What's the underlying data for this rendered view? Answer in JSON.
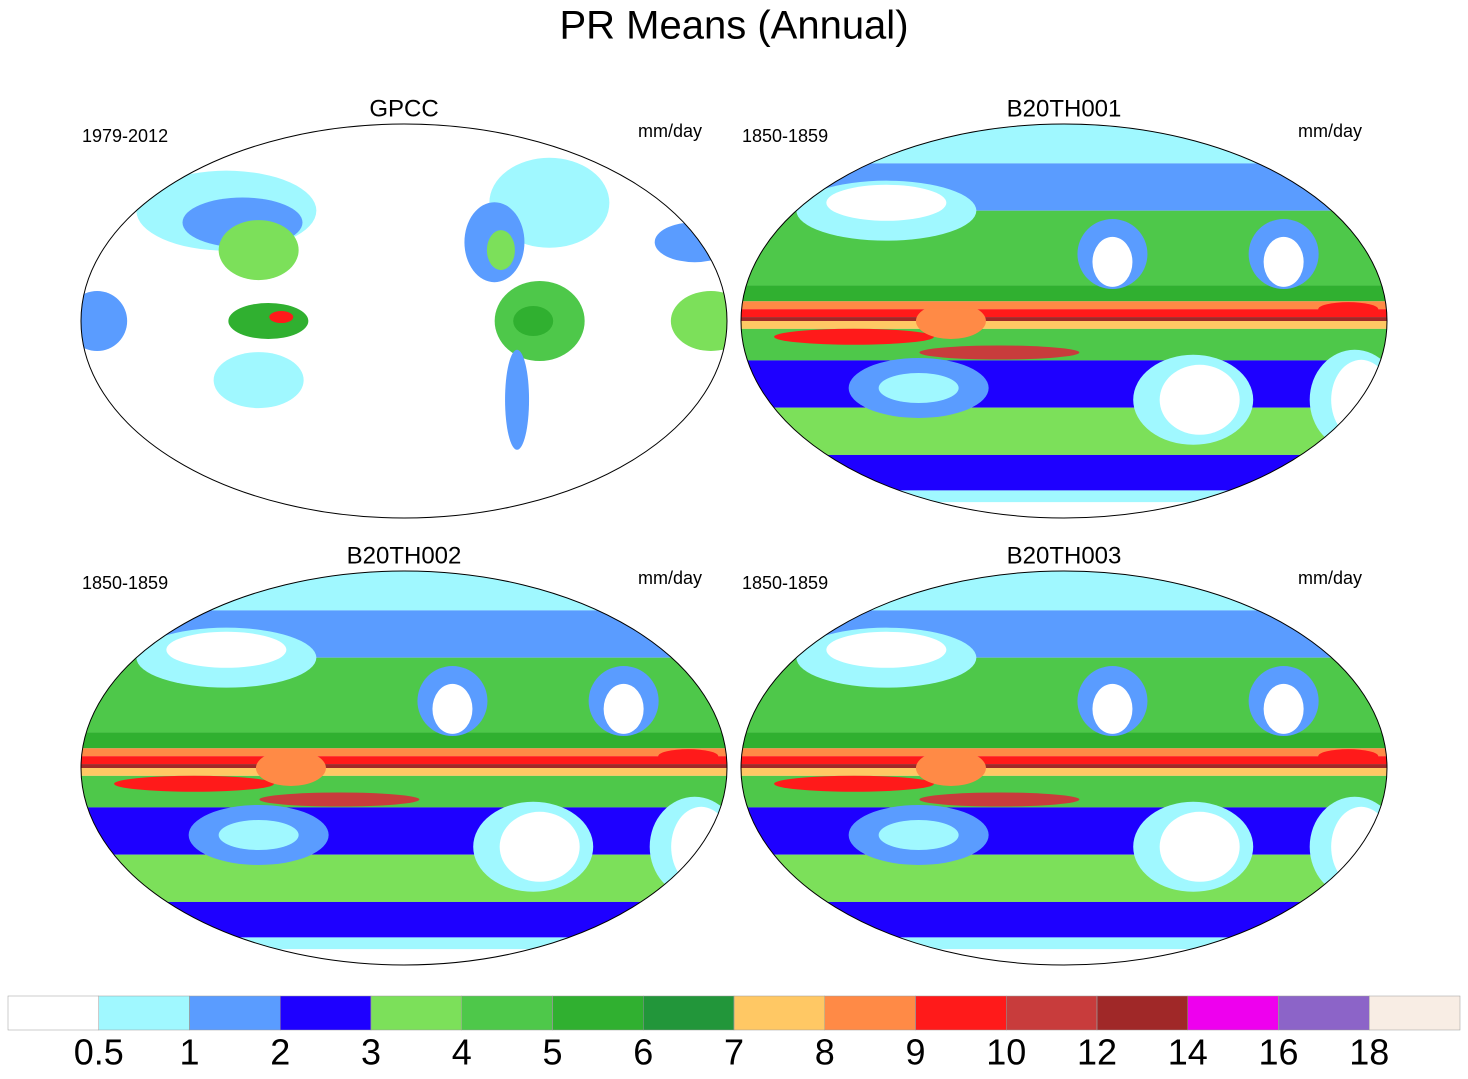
{
  "title": "PR Means (Annual)",
  "panels": [
    {
      "title": "GPCC",
      "period": "1979-2012",
      "units": "mm/day"
    },
    {
      "title": "B20TH001",
      "period": "1850-1859",
      "units": "mm/day"
    },
    {
      "title": "B20TH002",
      "period": "1850-1859",
      "units": "mm/day"
    },
    {
      "title": "B20TH003",
      "period": "1850-1859",
      "units": "mm/day"
    }
  ],
  "colorbar": {
    "levels": [
      0.5,
      1,
      2,
      3,
      4,
      5,
      6,
      7,
      8,
      9,
      10,
      12,
      14,
      16,
      18
    ],
    "colors": [
      "#ffffff",
      "#a0f8ff",
      "#5a9cff",
      "#1e00ff",
      "#7ce05a",
      "#4ec84a",
      "#30b030",
      "#22963a",
      "#ffc864",
      "#ff8a46",
      "#ff1a1a",
      "#c83c3c",
      "#a02828",
      "#ee00ee",
      "#8c64c8",
      "#f8ede4"
    ]
  }
}
